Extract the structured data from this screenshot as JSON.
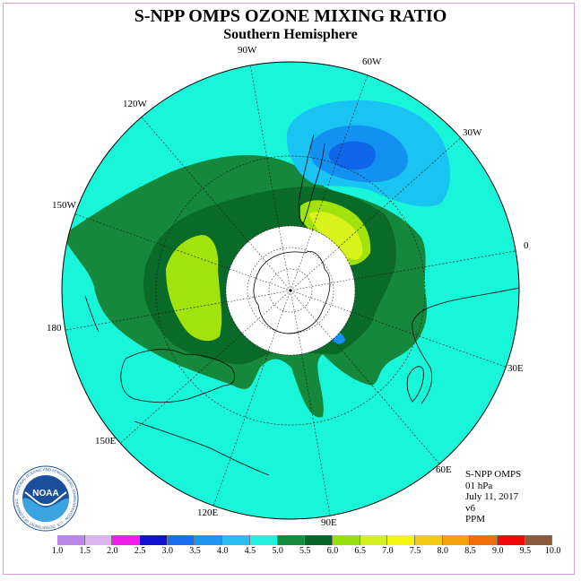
{
  "header": {
    "title": "S-NPP OMPS OZONE MIXING RATIO",
    "subtitle": "Southern Hemisphere"
  },
  "map": {
    "projection": "polar stereographic, south pole",
    "longitude_labels": [
      "90W",
      "60W",
      "30W",
      "0",
      "30E",
      "60E",
      "90E",
      "120E",
      "150E",
      "180",
      "150W",
      "120W"
    ],
    "fill_colors": {
      "background_4_5_5_0": "#19f5d9",
      "band_5_0_5_5": "#16883c",
      "band_5_5_6_0": "#0a6a28",
      "band_6_0_6_5": "#a2e30d",
      "band_6_5_7_0": "#d9f21c",
      "low_4_0_4_5": "#19c4f2",
      "low_3_5_4_0": "#1391f0",
      "low_3_0_3_5": "#0e66e8"
    }
  },
  "info": {
    "instrument": "S-NPP OMPS",
    "level": "01 hPa",
    "date": "July 11, 2017",
    "version": "v6",
    "units": "PPM"
  },
  "colorbar": {
    "tick_labels": [
      "1.0",
      "1.5",
      "2.0",
      "2.5",
      "3.0",
      "3.5",
      "4.0",
      "4.5",
      "5.0",
      "5.5",
      "6.0",
      "6.5",
      "7.0",
      "7.5",
      "8.0",
      "8.5",
      "9.0",
      "9.5",
      "10.0"
    ],
    "colors": [
      "#b887e8",
      "#deb4f0",
      "#f01ee6",
      "#1212d2",
      "#1a6ef0",
      "#1e96f0",
      "#28bef0",
      "#20f0dc",
      "#148c3c",
      "#0a6428",
      "#96e10a",
      "#d2f01e",
      "#f5f514",
      "#f5c814",
      "#f5a00a",
      "#f06e0a",
      "#f00a0a",
      "#8c5a3c"
    ]
  },
  "logo": {
    "text": "NOAA",
    "ring_text": "NATIONAL OCEANIC AND ATMOSPHERIC ADMINISTRATION · U.S. DEPARTMENT OF COMMERCE"
  }
}
